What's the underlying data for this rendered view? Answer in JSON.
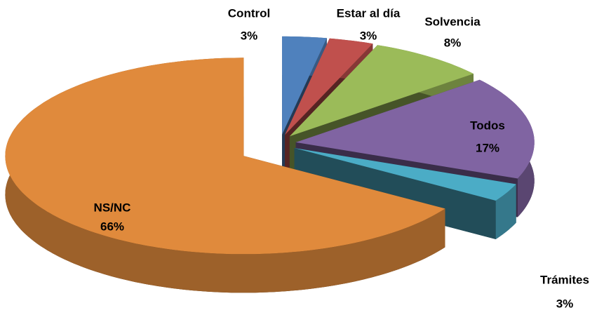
{
  "chart_data": {
    "type": "pie",
    "categories": [
      "Control",
      "Estar al día",
      "Solvencia",
      "Todos",
      "Trámites",
      "NS/NC"
    ],
    "values": [
      3,
      3,
      8,
      17,
      3,
      66
    ],
    "value_labels": [
      "3%",
      "3%",
      "8%",
      "17%",
      "3%",
      "66%"
    ],
    "colors": [
      "#4f81bd",
      "#c0504d",
      "#9bbb59",
      "#8064a2",
      "#4bacc6",
      "#e08a3c"
    ]
  }
}
